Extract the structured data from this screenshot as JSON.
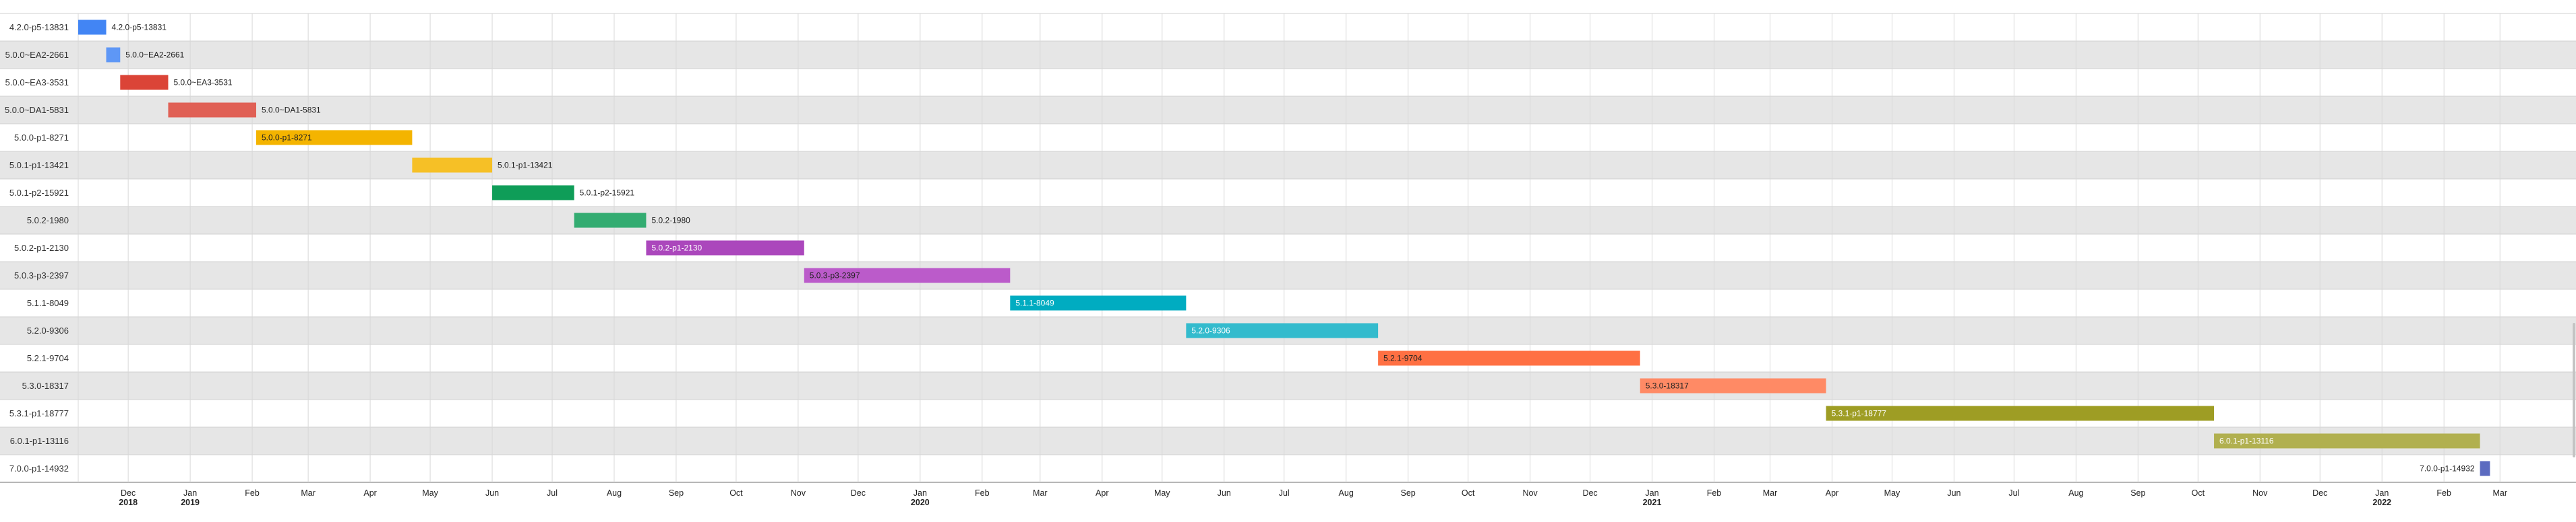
{
  "chart_data": {
    "type": "timeline",
    "grid": true,
    "x_range": [
      "2018-11-06",
      "2022-04-07"
    ],
    "month_ticks": [
      {
        "date": "2018-12-01",
        "label": "Dec",
        "year": "2018"
      },
      {
        "date": "2019-01-01",
        "label": "Jan",
        "year": "2019"
      },
      {
        "date": "2019-02-01",
        "label": "Feb"
      },
      {
        "date": "2019-03-01",
        "label": "Mar"
      },
      {
        "date": "2019-04-01",
        "label": "Apr"
      },
      {
        "date": "2019-05-01",
        "label": "May"
      },
      {
        "date": "2019-06-01",
        "label": "Jun"
      },
      {
        "date": "2019-07-01",
        "label": "Jul"
      },
      {
        "date": "2019-08-01",
        "label": "Aug"
      },
      {
        "date": "2019-09-01",
        "label": "Sep"
      },
      {
        "date": "2019-10-01",
        "label": "Oct"
      },
      {
        "date": "2019-11-01",
        "label": "Nov"
      },
      {
        "date": "2019-12-01",
        "label": "Dec"
      },
      {
        "date": "2020-01-01",
        "label": "Jan",
        "year": "2020"
      },
      {
        "date": "2020-02-01",
        "label": "Feb"
      },
      {
        "date": "2020-03-01",
        "label": "Mar"
      },
      {
        "date": "2020-04-01",
        "label": "Apr"
      },
      {
        "date": "2020-05-01",
        "label": "May"
      },
      {
        "date": "2020-06-01",
        "label": "Jun"
      },
      {
        "date": "2020-07-01",
        "label": "Jul"
      },
      {
        "date": "2020-08-01",
        "label": "Aug"
      },
      {
        "date": "2020-09-01",
        "label": "Sep"
      },
      {
        "date": "2020-10-01",
        "label": "Oct"
      },
      {
        "date": "2020-11-01",
        "label": "Nov"
      },
      {
        "date": "2020-12-01",
        "label": "Dec"
      },
      {
        "date": "2021-01-01",
        "label": "Jan",
        "year": "2021"
      },
      {
        "date": "2021-02-01",
        "label": "Feb"
      },
      {
        "date": "2021-03-01",
        "label": "Mar"
      },
      {
        "date": "2021-04-01",
        "label": "Apr"
      },
      {
        "date": "2021-05-01",
        "label": "May"
      },
      {
        "date": "2021-06-01",
        "label": "Jun"
      },
      {
        "date": "2021-07-01",
        "label": "Jul"
      },
      {
        "date": "2021-08-01",
        "label": "Aug"
      },
      {
        "date": "2021-09-01",
        "label": "Sep"
      },
      {
        "date": "2021-10-01",
        "label": "Oct"
      },
      {
        "date": "2021-11-01",
        "label": "Nov"
      },
      {
        "date": "2021-12-01",
        "label": "Dec"
      },
      {
        "date": "2022-01-01",
        "label": "Jan",
        "year": "2022"
      },
      {
        "date": "2022-02-01",
        "label": "Feb"
      },
      {
        "date": "2022-03-01",
        "label": "Mar"
      }
    ],
    "tasks": [
      {
        "name": "4.2.0-p5-13831",
        "start": "2018-11-06",
        "end": "2018-11-20",
        "color": "#4285f4",
        "label_color": "#222222"
      },
      {
        "name": "5.0.0~EA2-2661",
        "start": "2018-11-20",
        "end": "2018-11-27",
        "color": "#5e97f6",
        "label_color": "#222222"
      },
      {
        "name": "5.0.0~EA3-3531",
        "start": "2018-11-27",
        "end": "2018-12-21",
        "color": "#db4437",
        "label_color": "#222222"
      },
      {
        "name": "5.0.0~DA1-5831",
        "start": "2018-12-21",
        "end": "2019-02-03",
        "color": "#e06055",
        "label_color": "#ffffff"
      },
      {
        "name": "5.0.0-p1-8271",
        "start": "2019-02-03",
        "end": "2019-04-22",
        "color": "#f4b400",
        "label_color": "#222222"
      },
      {
        "name": "5.0.1-p1-13421",
        "start": "2019-04-22",
        "end": "2019-06-01",
        "color": "#f6c026",
        "label_color": "#222222"
      },
      {
        "name": "5.0.1-p2-15921",
        "start": "2019-06-01",
        "end": "2019-07-12",
        "color": "#0f9d58",
        "label_color": "#ffffff"
      },
      {
        "name": "5.0.2-1980",
        "start": "2019-07-12",
        "end": "2019-08-17",
        "color": "#33ac71",
        "label_color": "#ffffff"
      },
      {
        "name": "5.0.2-p1-2130",
        "start": "2019-08-17",
        "end": "2019-11-04",
        "color": "#ab47bc",
        "label_color": "#ffffff"
      },
      {
        "name": "5.0.3-p3-2397",
        "start": "2019-11-04",
        "end": "2020-02-15",
        "color": "#bb5bca",
        "label_color": "#222222"
      },
      {
        "name": "5.1.1-8049",
        "start": "2020-02-15",
        "end": "2020-05-13",
        "color": "#00acc1",
        "label_color": "#ffffff"
      },
      {
        "name": "5.2.0-9306",
        "start": "2020-05-13",
        "end": "2020-08-17",
        "color": "#33bbcd",
        "label_color": "#ffffff"
      },
      {
        "name": "5.2.1-9704",
        "start": "2020-08-17",
        "end": "2020-12-26",
        "color": "#ff7043",
        "label_color": "#222222"
      },
      {
        "name": "5.3.0-18317",
        "start": "2020-12-26",
        "end": "2021-03-29",
        "color": "#ff8a65",
        "label_color": "#222222"
      },
      {
        "name": "5.3.1-p1-18777",
        "start": "2021-03-29",
        "end": "2021-10-09",
        "color": "#9e9d24",
        "label_color": "#ffffff"
      },
      {
        "name": "6.0.1-p1-13116",
        "start": "2021-10-09",
        "end": "2022-02-19",
        "color": "#b1b04f",
        "label_color": "#ffffff"
      },
      {
        "name": "7.0.0-p1-14932",
        "start": "2022-02-19",
        "end": "2022-02-24",
        "color": "#5c6bc0",
        "label_color": "#222222"
      }
    ]
  }
}
